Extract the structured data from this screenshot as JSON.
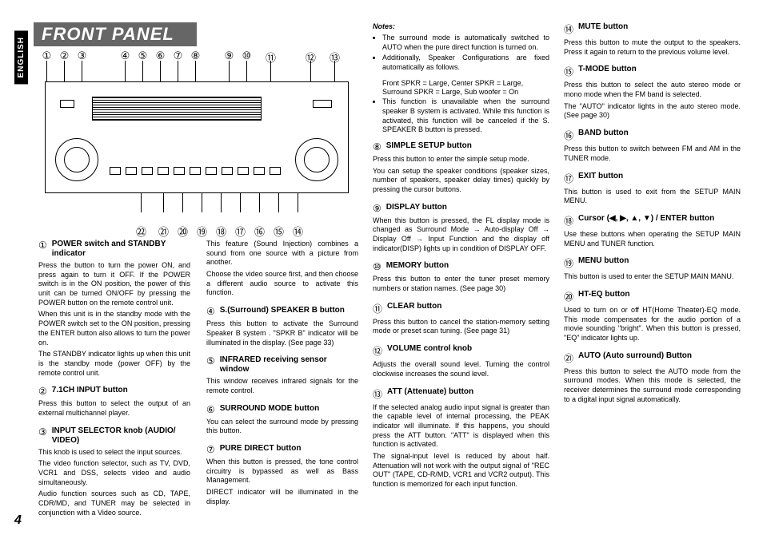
{
  "language_tab": "ENGLISH",
  "page_title": "FRONT PANEL",
  "page_number": "4",
  "callouts_top": [
    "①",
    "②",
    "③",
    "④",
    "⑤",
    "⑥",
    "⑦",
    "⑧",
    "⑨",
    "⑩",
    "⑪",
    "⑫",
    "⑬"
  ],
  "callouts_bottom": [
    "㉒",
    "㉑",
    "⑳",
    "⑲",
    "⑱",
    "⑰",
    "⑯",
    "⑮",
    "⑭"
  ],
  "notes_label": "Notes:",
  "notes": [
    "The surround mode is automatically switched to AUTO when the pure direct function is turned on.",
    "Additionally, Speaker Configurations are fixed automatically as follows."
  ],
  "notes_indent": [
    "Front SPKR = Large, Center SPKR = Large,",
    "Surround SPKR = Large, Sub woofer = On"
  ],
  "notes_tail": "This function is unavailable when the surround speaker B system is activated. While this function is activated, this function will be canceled if the S. SPEAKER B button is pressed.",
  "col_a": [
    {
      "n": "①",
      "t": "POWER switch and STANDBY indicator",
      "b": [
        "Press the button to turn the power ON, and press again to turn it OFF. If the POWER switch is in the ON position, the power of this unit can be turned ON/OFF by pressing the POWER button on the remote control unit.",
        "When this unit is in the standby mode with the POWER switch set to the ON position, pressing the ENTER button also allows to turn the power on.",
        "The STANDBY indicator lights up when this unit is the standby mode (power OFF) by the remote control unit."
      ]
    },
    {
      "n": "②",
      "t": "7.1CH INPUT button",
      "b": [
        "Press this button to select the output of an external multichannel player."
      ]
    },
    {
      "n": "③",
      "t": "INPUT SELECTOR knob (AUDIO/ VIDEO)",
      "b": [
        "This knob is used to select the input sources.",
        "The video function selector, such as TV, DVD, VCR1 and DSS, selects video and audio simultaneously.",
        "Audio function sources such as CD, TAPE, CDR/MD, and TUNER may be selected in conjunction with a Video source."
      ]
    }
  ],
  "col_b": [
    {
      "n": "",
      "t": "",
      "b": [
        "This feature (Sound Injection) combines a sound from one source with a picture from another.",
        "Choose the video source first, and then choose a different audio source to activate this function."
      ]
    },
    {
      "n": "④",
      "t": "S.(Surround) SPEAKER B button",
      "b": [
        "Press this button to activate the Surround Speaker B system . \"SPKR B\" indicator will be illuminated in the display. (See page 33)"
      ]
    },
    {
      "n": "⑤",
      "t": "INFRARED receiving sensor window",
      "b": [
        "This window receives infrared signals for the remote control."
      ]
    },
    {
      "n": "⑥",
      "t": "SURROUND MODE button",
      "b": [
        "You can select the surround mode by pressing this button."
      ]
    },
    {
      "n": "⑦",
      "t": "PURE DIRECT button",
      "b": [
        "When this button is pressed, the tone control circuitry is bypassed as well as Bass Management.",
        "DIRECT indicator will be illuminated in the display."
      ]
    }
  ],
  "col_c": [
    {
      "n": "⑧",
      "t": "SIMPLE SETUP button",
      "b": [
        "Press this button to enter the simple setup mode.",
        "You can setup the speaker conditions (speaker sizes, number of speakers, speaker delay times) quickly by pressing the cursor buttons."
      ]
    },
    {
      "n": "⑨",
      "t": "DISPLAY button",
      "b": [
        "When this button is pressed, the FL display mode is changed as Surround Mode → Auto-display Off → Display Off → Input Function  and the display off indicator(DISP) lights up in  condition of DISPLAY OFF."
      ]
    },
    {
      "n": "⑩",
      "t": "MEMORY button",
      "b": [
        "Press this button to enter the tuner preset memory numbers or station names. (See page 30)"
      ]
    },
    {
      "n": "⑪",
      "t": "CLEAR button",
      "b": [
        "Press this button to cancel the station-memory setting mode or preset scan tuning. (See page 31)"
      ]
    },
    {
      "n": "⑫",
      "t": "VOLUME control knob",
      "b": [
        "Adjusts the overall sound level. Turning the control clockwise increases the sound level."
      ]
    },
    {
      "n": "⑬",
      "t": "ATT (Attenuate) button",
      "b": [
        "If the selected analog audio input signal is greater than the capable level of internal processing, the PEAK indicator will illuminate. If this happens, you should press the ATT button. \"ATT\" is displayed when this function is activated.",
        "The signal-input level is reduced by about half. Attenuation will not work with the output signal of \"REC OUT\" (TAPE, CD-R/MD, VCR1 and VCR2 output). This function is memorized for each input function."
      ]
    }
  ],
  "col_d": [
    {
      "n": "⑭",
      "t": "MUTE button",
      "b": [
        "Press this button to mute the output to the speakers. Press it again to return to the previous volume level."
      ]
    },
    {
      "n": "⑮",
      "t": "T-MODE button",
      "b": [
        "Press this button to select the auto stereo mode or mono mode when the FM band is selected.",
        "The \"AUTO\" indicator lights in the auto stereo mode. (See page 30)"
      ]
    },
    {
      "n": "⑯",
      "t": "BAND button",
      "b": [
        "Press this button to switch between FM and AM in the TUNER mode."
      ]
    },
    {
      "n": "⑰",
      "t": "EXIT button",
      "b": [
        "This button is used to exit from the SETUP MAIN MENU."
      ]
    },
    {
      "n": "⑱",
      "t": "Cursor (◀, ▶, ▲, ▼) / ENTER button",
      "b": [
        "Use these buttons when operating the SETUP MAIN MENU and TUNER function."
      ]
    },
    {
      "n": "⑲",
      "t": "MENU button",
      "b": [
        "This button is used to enter the SETUP MAIN MANU."
      ]
    },
    {
      "n": "⑳",
      "t": "HT-EQ button",
      "b": [
        "Used to turn on or off HT(Home Theater)-EQ mode. This mode compensates for the audio portion of a movie sounding \"bright\". When this button is pressed, \"EQ\" indicator lights up."
      ]
    },
    {
      "n": "㉑",
      "t": "AUTO (Auto surround) Button",
      "b": [
        "Press this button to select the AUTO mode from the surround modes. When this mode is selected, the receiver determines the surround mode corresponding to a digital input signal automatically."
      ]
    }
  ]
}
